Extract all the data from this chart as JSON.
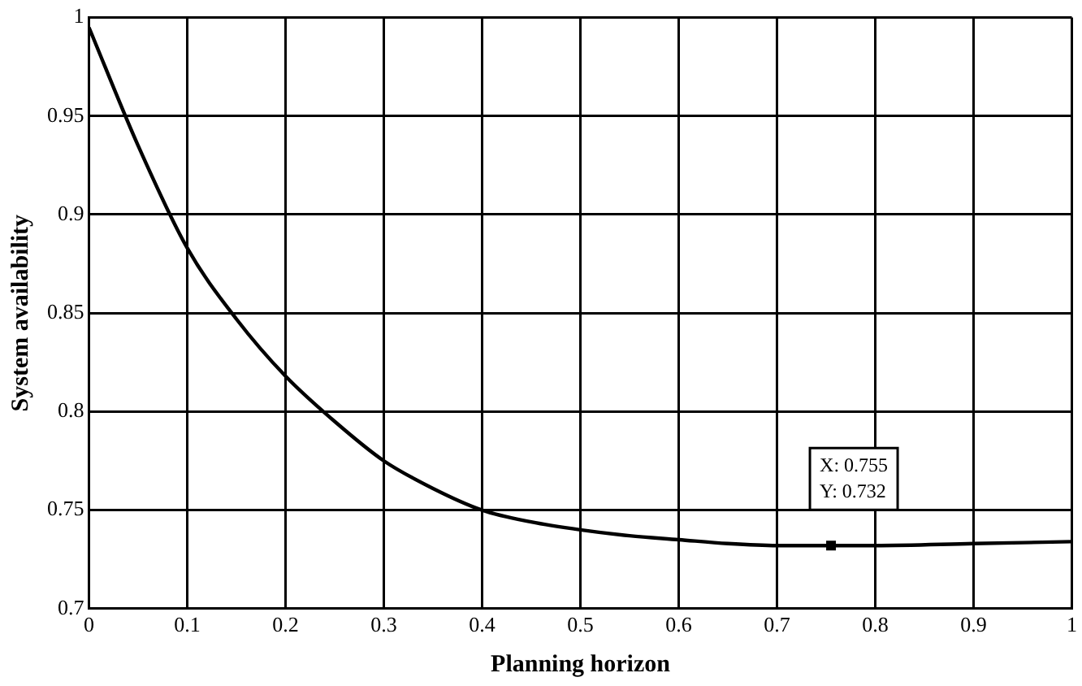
{
  "chart_data": {
    "type": "line",
    "xlabel": "Planning horizon",
    "ylabel": "System availability",
    "x": [
      0,
      0.05,
      0.1,
      0.15,
      0.2,
      0.25,
      0.3,
      0.35,
      0.4,
      0.45,
      0.5,
      0.55,
      0.6,
      0.65,
      0.7,
      0.755,
      0.8,
      0.9,
      1.0
    ],
    "series": [
      {
        "color": "#000000",
        "values": [
          0.995,
          0.935,
          0.883,
          0.847,
          0.818,
          0.795,
          0.775,
          0.761,
          0.75,
          0.744,
          0.74,
          0.737,
          0.735,
          0.733,
          0.732,
          0.732,
          0.732,
          0.733,
          0.734
        ]
      }
    ],
    "xlim": [
      0,
      1
    ],
    "xticks": [
      0,
      0.1,
      0.2,
      0.3,
      0.4,
      0.5,
      0.6,
      0.7,
      0.8,
      0.9,
      1
    ],
    "ylim": [
      0.7,
      1
    ],
    "yticks": [
      0.7,
      0.75,
      0.8,
      0.85,
      0.9,
      0.95,
      1
    ],
    "grid": true,
    "legend": false,
    "marker": "none",
    "line_style": "solid",
    "annotations": [
      {
        "text": "X: 0.755\nY: 0.732",
        "x": 0.755,
        "y": 0.732
      }
    ]
  }
}
